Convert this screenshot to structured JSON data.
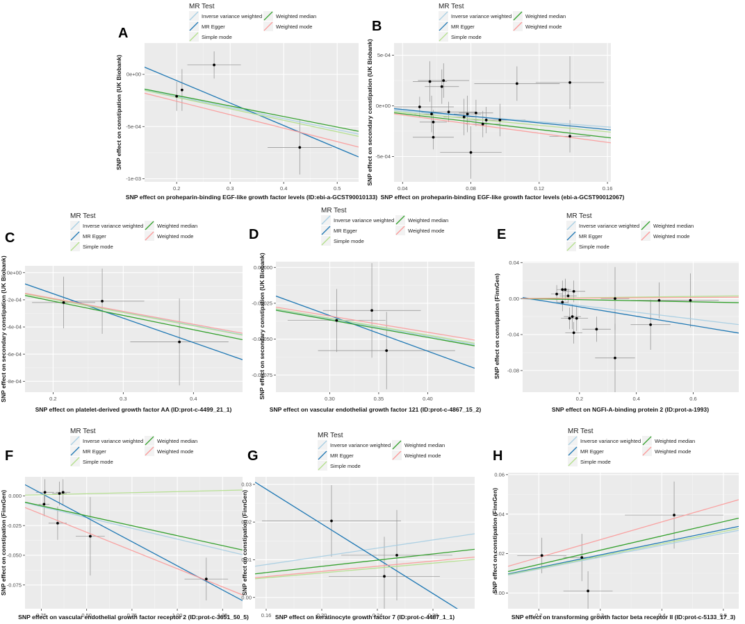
{
  "chart_data": [
    {
      "panel": "A",
      "type": "scatter",
      "legend_title": "MR Test",
      "xlabel": "SNP effect on proheparin-binding EGF-like growth factor levels (ID:ebi-a-GCST90010133)",
      "ylabel": "SNP effect on constipation (UK Biobank)",
      "xlim": [
        0.14,
        0.54
      ],
      "ylim": [
        -0.00103,
        0.0003
      ],
      "xticks": [
        0.2,
        0.3,
        0.4,
        0.5
      ],
      "xtick_labels": [
        "0.2",
        "0.3",
        "0.4",
        "0.5"
      ],
      "yticks": [
        0,
        -0.0005,
        -0.001
      ],
      "ytick_labels": [
        "0e+00",
        "-5e-04",
        "-1e-03"
      ],
      "points": [
        {
          "x": 0.2,
          "y": -0.00021,
          "xerr": 0.0,
          "yerr": 0.00014
        },
        {
          "x": 0.21,
          "y": -0.00015,
          "xerr": 0.0,
          "yerr": 0.0002
        },
        {
          "x": 0.27,
          "y": 9e-05,
          "xerr": 0.05,
          "yerr": 0.00013
        },
        {
          "x": 0.43,
          "y": -0.0007,
          "xerr": 0.06,
          "yerr": 0.00026
        }
      ],
      "lines": [
        {
          "method": "Inverse variance weighted",
          "slope": -0.00106,
          "intercept": 0
        },
        {
          "method": "MR Egger",
          "slope": -0.00215,
          "intercept": 0.00037
        },
        {
          "method": "Simple mode",
          "slope": -0.0011,
          "intercept": 0
        },
        {
          "method": "Weighted median",
          "slope": -0.00101,
          "intercept": 0
        },
        {
          "method": "Weighted mode",
          "slope": -0.00129,
          "intercept": 0
        }
      ]
    },
    {
      "panel": "B",
      "type": "scatter",
      "legend_title": "MR Test",
      "xlabel": "SNP effect on proheparin-binding EGF-like growth factor levels (ebi-a-GCST90012067)",
      "ylabel": "SNP effect on secondary constipation (UK Biobank)",
      "xlim": [
        0.035,
        0.162
      ],
      "ylim": [
        -0.00075,
        0.00062
      ],
      "xticks": [
        0.04,
        0.08,
        0.12,
        0.16
      ],
      "xtick_labels": [
        "0.04",
        "0.08",
        "0.12",
        "0.16"
      ],
      "yticks": [
        0.0005,
        0,
        -0.0005
      ],
      "ytick_labels": [
        "5e-04",
        "0e+00",
        "-5e-04"
      ],
      "points": [
        {
          "x": 0.05,
          "y": -1e-05,
          "xerr": 0.02,
          "yerr": 0.0001
        },
        {
          "x": 0.056,
          "y": 0.00024,
          "xerr": 0.01,
          "yerr": 0.0002
        },
        {
          "x": 0.057,
          "y": -8e-05,
          "xerr": 0.01,
          "yerr": 0.00018
        },
        {
          "x": 0.058,
          "y": -0.00016,
          "xerr": 0.008,
          "yerr": 0.00012
        },
        {
          "x": 0.058,
          "y": -0.00031,
          "xerr": 0.012,
          "yerr": 0.00012
        },
        {
          "x": 0.064,
          "y": 0.00025,
          "xerr": 0.015,
          "yerr": 0.00017
        },
        {
          "x": 0.063,
          "y": 0.00019,
          "xerr": 0.01,
          "yerr": 0.00017
        },
        {
          "x": 0.067,
          "y": -6e-05,
          "xerr": 0.016,
          "yerr": 0.0001
        },
        {
          "x": 0.076,
          "y": -0.00011,
          "xerr": 0.012,
          "yerr": 0.00018
        },
        {
          "x": 0.078,
          "y": -8e-05,
          "xerr": 0.008,
          "yerr": 0.00018
        },
        {
          "x": 0.08,
          "y": -0.00046,
          "xerr": 0.018,
          "yerr": 0.00026
        },
        {
          "x": 0.083,
          "y": -7e-05,
          "xerr": 0.01,
          "yerr": 0.00013
        },
        {
          "x": 0.087,
          "y": -0.00018,
          "xerr": 0.01,
          "yerr": 0.00013
        },
        {
          "x": 0.089,
          "y": -0.00014,
          "xerr": 0.012,
          "yerr": 0.00013
        },
        {
          "x": 0.097,
          "y": -0.00014,
          "xerr": 0.015,
          "yerr": 0.00016
        },
        {
          "x": 0.107,
          "y": 0.00022,
          "xerr": 0.025,
          "yerr": 0.00017
        },
        {
          "x": 0.138,
          "y": 0.00023,
          "xerr": 0.02,
          "yerr": 0.00026
        },
        {
          "x": 0.138,
          "y": -0.0003,
          "xerr": 0.012,
          "yerr": 0.00016
        }
      ],
      "lines": [
        {
          "method": "Inverse variance weighted",
          "slope": -0.0013,
          "intercept": 0
        },
        {
          "method": "MR Egger",
          "slope": -0.00165,
          "intercept": 3e-05
        },
        {
          "method": "Simple mode",
          "slope": -0.0016,
          "intercept": 0
        },
        {
          "method": "Weighted median",
          "slope": -0.00195,
          "intercept": 0
        },
        {
          "method": "Weighted mode",
          "slope": -0.00225,
          "intercept": 0
        }
      ]
    },
    {
      "panel": "C",
      "type": "scatter",
      "legend_title": "MR Test",
      "xlabel": "SNP effect on platelet-derived growth factor AA (ID:prot-c-4499_21_1)",
      "ylabel": "SNP effect on secondary constipation (UK Biobank)",
      "xlim": [
        0.16,
        0.47
      ],
      "ylim": [
        -0.00088,
        5e-05
      ],
      "xticks": [
        0.2,
        0.3,
        0.4
      ],
      "xtick_labels": [
        "0.2",
        "0.3",
        "0.4"
      ],
      "yticks": [
        0,
        -0.0002,
        -0.0004,
        -0.0006,
        -0.0008
      ],
      "ytick_labels": [
        "0e+00",
        "-2e-04",
        "-4e-04",
        "-6e-04",
        "-8e-04"
      ],
      "points": [
        {
          "x": 0.215,
          "y": -0.00022,
          "xerr": 0.045,
          "yerr": 0.00019
        },
        {
          "x": 0.27,
          "y": -0.00021,
          "xerr": 0.06,
          "yerr": 0.00024
        },
        {
          "x": 0.38,
          "y": -0.00051,
          "xerr": 0.07,
          "yerr": 0.00032
        }
      ],
      "lines": [
        {
          "method": "Inverse variance weighted",
          "slope": -0.00097,
          "intercept": 0
        },
        {
          "method": "MR Egger",
          "slope": -0.0018,
          "intercept": 0.000205
        },
        {
          "method": "Simple mode",
          "slope": -0.00098,
          "intercept": 0
        },
        {
          "method": "Weighted median",
          "slope": -0.00105,
          "intercept": 0
        },
        {
          "method": "Weighted mode",
          "slope": -0.00095,
          "intercept": 0
        }
      ]
    },
    {
      "panel": "D",
      "type": "scatter",
      "legend_title": "MR Test",
      "xlabel": "SNP effect on vascular endothelial growth factor 121  (ID:prot-c-4867_15_2)",
      "ylabel": "SNP effect on secondary constipation (UK Biobank)",
      "xlim": [
        0.245,
        0.448
      ],
      "ylim": [
        -0.00087,
        4e-05
      ],
      "xticks": [
        0.3,
        0.35,
        0.4
      ],
      "xtick_labels": [
        "0.30",
        "0.35",
        "0.40"
      ],
      "yticks": [
        0,
        -0.00025,
        -0.0005,
        -0.00075
      ],
      "ytick_labels": [
        "0.00000",
        "-0.00025",
        "-0.00050",
        "-0.00075"
      ],
      "points": [
        {
          "x": 0.307,
          "y": -0.00037,
          "xerr": 0.05,
          "yerr": 0.00022
        },
        {
          "x": 0.343,
          "y": -0.0003,
          "xerr": 0.05,
          "yerr": 0.00033
        },
        {
          "x": 0.358,
          "y": -0.00058,
          "xerr": 0.07,
          "yerr": 0.00027
        }
      ],
      "lines": [
        {
          "method": "Inverse variance weighted",
          "slope": -0.0012,
          "intercept": 0
        },
        {
          "method": "MR Egger",
          "slope": -0.00248,
          "intercept": 0.000408
        },
        {
          "method": "Simple mode",
          "slope": -0.00118,
          "intercept": 0
        },
        {
          "method": "Weighted median",
          "slope": -0.00122,
          "intercept": 0
        },
        {
          "method": "Weighted mode",
          "slope": -0.00113,
          "intercept": 0
        }
      ]
    },
    {
      "panel": "E",
      "type": "scatter",
      "legend_title": "MR Test",
      "xlabel": "SNP effect on NGFI-A-binding protein 2  (ID:prot-a-1993)",
      "ylabel": "SNP effect on constipation (FinnGen)",
      "xlim": [
        0.0,
        0.76
      ],
      "ylim": [
        -0.104,
        0.041
      ],
      "xticks": [
        0.2,
        0.4,
        0.6
      ],
      "xtick_labels": [
        "0.2",
        "0.4",
        "0.6"
      ],
      "yticks": [
        0.04,
        0.0,
        -0.04,
        -0.08
      ],
      "ytick_labels": [
        "0.04",
        "0.00",
        "-0.04",
        "-0.08"
      ],
      "points": [
        {
          "x": 0.12,
          "y": 0.005,
          "xerr": 0.02,
          "yerr": 0.01
        },
        {
          "x": 0.14,
          "y": 0.01,
          "xerr": 0.02,
          "yerr": 0.01
        },
        {
          "x": 0.15,
          "y": 0.01,
          "xerr": 0.02,
          "yerr": 0.012
        },
        {
          "x": 0.16,
          "y": 0.003,
          "xerr": 0.03,
          "yerr": 0.008
        },
        {
          "x": 0.14,
          "y": -0.004,
          "xerr": 0.02,
          "yerr": 0.01
        },
        {
          "x": 0.18,
          "y": 0.008,
          "xerr": 0.04,
          "yerr": 0.012
        },
        {
          "x": 0.165,
          "y": -0.022,
          "xerr": 0.03,
          "yerr": 0.012
        },
        {
          "x": 0.175,
          "y": -0.02,
          "xerr": 0.03,
          "yerr": 0.014
        },
        {
          "x": 0.19,
          "y": -0.022,
          "xerr": 0.04,
          "yerr": 0.014
        },
        {
          "x": 0.18,
          "y": -0.038,
          "xerr": 0.03,
          "yerr": 0.012
        },
        {
          "x": 0.26,
          "y": -0.034,
          "xerr": 0.05,
          "yerr": 0.014
        },
        {
          "x": 0.325,
          "y": 0.0,
          "xerr": 0.05,
          "yerr": 0.035
        },
        {
          "x": 0.325,
          "y": -0.066,
          "xerr": 0.07,
          "yerr": 0.038
        },
        {
          "x": 0.45,
          "y": -0.029,
          "xerr": 0.07,
          "yerr": 0.028
        },
        {
          "x": 0.48,
          "y": -0.002,
          "xerr": 0.1,
          "yerr": 0.02
        },
        {
          "x": 0.59,
          "y": -0.002,
          "xerr": 0.1,
          "yerr": 0.03
        }
      ],
      "lines": [
        {
          "method": "Inverse variance weighted",
          "slope": -0.038,
          "intercept": 0
        },
        {
          "method": "MR Egger",
          "slope": -0.052,
          "intercept": 0.0012
        },
        {
          "method": "Simple mode",
          "slope": 0.004,
          "intercept": 0
        },
        {
          "method": "Weighted median",
          "slope": -0.006,
          "intercept": 0
        },
        {
          "method": "Weighted mode",
          "slope": 0.002,
          "intercept": 0
        }
      ]
    },
    {
      "panel": "F",
      "type": "scatter",
      "legend_title": "MR Test",
      "xlabel": "SNP effect on vascular endothelial growth factor receptor 2  (ID:prot-c-3651_50_5)",
      "ylabel": "SNP effect on constipation (FinnGen)",
      "xlim": [
        0.16,
        1.36
      ],
      "ylim": [
        -0.095,
        0.016
      ],
      "xticks": [
        0.25,
        0.5,
        0.75,
        1.0,
        1.25
      ],
      "xtick_labels": [
        "0.25",
        "0.50",
        "0.75",
        "1.00",
        "1.25"
      ],
      "yticks": [
        0.0,
        -0.025,
        -0.05,
        -0.075
      ],
      "ytick_labels": [
        "0.000",
        "-0.025",
        "-0.050",
        "-0.075"
      ],
      "points": [
        {
          "x": 0.27,
          "y": 0.003,
          "xerr": 0.05,
          "yerr": 0.011
        },
        {
          "x": 0.265,
          "y": -0.007,
          "xerr": 0.03,
          "yerr": 0.01
        },
        {
          "x": 0.35,
          "y": 0.002,
          "xerr": 0.04,
          "yerr": 0.01
        },
        {
          "x": 0.37,
          "y": 0.003,
          "xerr": 0.04,
          "yerr": 0.011
        },
        {
          "x": 0.34,
          "y": -0.023,
          "xerr": 0.05,
          "yerr": 0.014
        },
        {
          "x": 0.52,
          "y": -0.034,
          "xerr": 0.08,
          "yerr": 0.033
        },
        {
          "x": 1.16,
          "y": -0.07,
          "xerr": 0.12,
          "yerr": 0.018
        }
      ],
      "lines": [
        {
          "method": "Inverse variance weighted",
          "slope": -0.0364,
          "intercept": 0
        },
        {
          "method": "MR Egger",
          "slope": -0.0813,
          "intercept": 0.0224
        },
        {
          "method": "Simple mode",
          "slope": 0.0036,
          "intercept": 0
        },
        {
          "method": "Weighted median",
          "slope": -0.0335,
          "intercept": 0
        },
        {
          "method": "Weighted mode",
          "slope": -0.0613,
          "intercept": 0
        }
      ]
    },
    {
      "panel": "G",
      "type": "scatter",
      "legend_title": "MR Test",
      "xlabel": "SNP effect on keratinocyte growth factor 7  (ID:prot-c-4487_1_1)",
      "ylabel": "SNP effect on constipation (FinnGen)",
      "xlim": [
        0.152,
        0.31
      ],
      "ylim": [
        -0.003,
        0.032
      ],
      "xticks": [
        0.16,
        0.2,
        0.24,
        0.28
      ],
      "xtick_labels": [
        "0.16",
        "0.20",
        "0.24",
        "0.28"
      ],
      "yticks": [
        0.0,
        0.01,
        0.02,
        0.03
      ],
      "ytick_labels": [
        "0.00",
        "0.01",
        "0.02",
        "0.03"
      ],
      "points": [
        {
          "x": 0.207,
          "y": 0.0203,
          "xerr": 0.05,
          "yerr": 0.0095
        },
        {
          "x": 0.245,
          "y": 0.0056,
          "xerr": 0.04,
          "yerr": 0.0105
        },
        {
          "x": 0.254,
          "y": 0.0112,
          "xerr": 0.04,
          "yerr": 0.012
        }
      ],
      "lines": [
        {
          "method": "Inverse variance weighted",
          "slope": 0.0545,
          "intercept": 0
        },
        {
          "method": "MR Egger",
          "slope": -0.231,
          "intercept": 0.0657
        },
        {
          "method": "Simple mode",
          "slope": 0.0325,
          "intercept": 0
        },
        {
          "method": "Weighted median",
          "slope": 0.0412,
          "intercept": 0
        },
        {
          "method": "Weighted mode",
          "slope": 0.0345,
          "intercept": 0
        }
      ]
    },
    {
      "panel": "H",
      "type": "scatter",
      "legend_title": "MR Test",
      "xlabel": "SNP effect on transforming growth factor beta receptor II  (ID:prot-c-5133_17_3)",
      "ylabel": "SNP effect on constipation (FinnGen)",
      "xlim": [
        0.15,
        0.525
      ],
      "ylim": [
        -0.008,
        0.061
      ],
      "xticks": [
        0.2,
        0.3,
        0.4,
        0.5
      ],
      "xtick_labels": [
        "0.2",
        "0.3",
        "0.4",
        "0.5"
      ],
      "yticks": [
        0.0,
        0.02,
        0.04,
        0.06
      ],
      "ytick_labels": [
        "0.00",
        "0.02",
        "0.04",
        "0.06"
      ],
      "points": [
        {
          "x": 0.205,
          "y": 0.019,
          "xerr": 0.04,
          "yerr": 0.009
        },
        {
          "x": 0.27,
          "y": 0.018,
          "xerr": 0.03,
          "yerr": 0.012
        },
        {
          "x": 0.28,
          "y": 0.001,
          "xerr": 0.04,
          "yerr": 0.01
        },
        {
          "x": 0.42,
          "y": 0.0395,
          "xerr": 0.08,
          "yerr": 0.017
        }
      ],
      "lines": [
        {
          "method": "Inverse variance weighted",
          "slope": 0.0605,
          "intercept": 0
        },
        {
          "method": "MR Egger",
          "slope": 0.0643,
          "intercept": 0
        },
        {
          "method": "Simple mode",
          "slope": 0.0623,
          "intercept": 0
        },
        {
          "method": "Weighted median",
          "slope": 0.0723,
          "intercept": 0
        },
        {
          "method": "Weighted mode",
          "slope": 0.0901,
          "intercept": 0
        }
      ]
    }
  ],
  "legend": {
    "title": "MR Test",
    "items": [
      {
        "label": "Inverse variance weighted",
        "color": "#a6cee3"
      },
      {
        "label": "MR Egger",
        "color": "#1f78b4"
      },
      {
        "label": "Simple mode",
        "color": "#b2df8a"
      },
      {
        "label": "Weighted median",
        "color": "#33a02c"
      },
      {
        "label": "Weighted mode",
        "color": "#fb9a99"
      }
    ]
  },
  "panels": [
    "A",
    "B",
    "C",
    "D",
    "E",
    "F",
    "G",
    "H"
  ]
}
